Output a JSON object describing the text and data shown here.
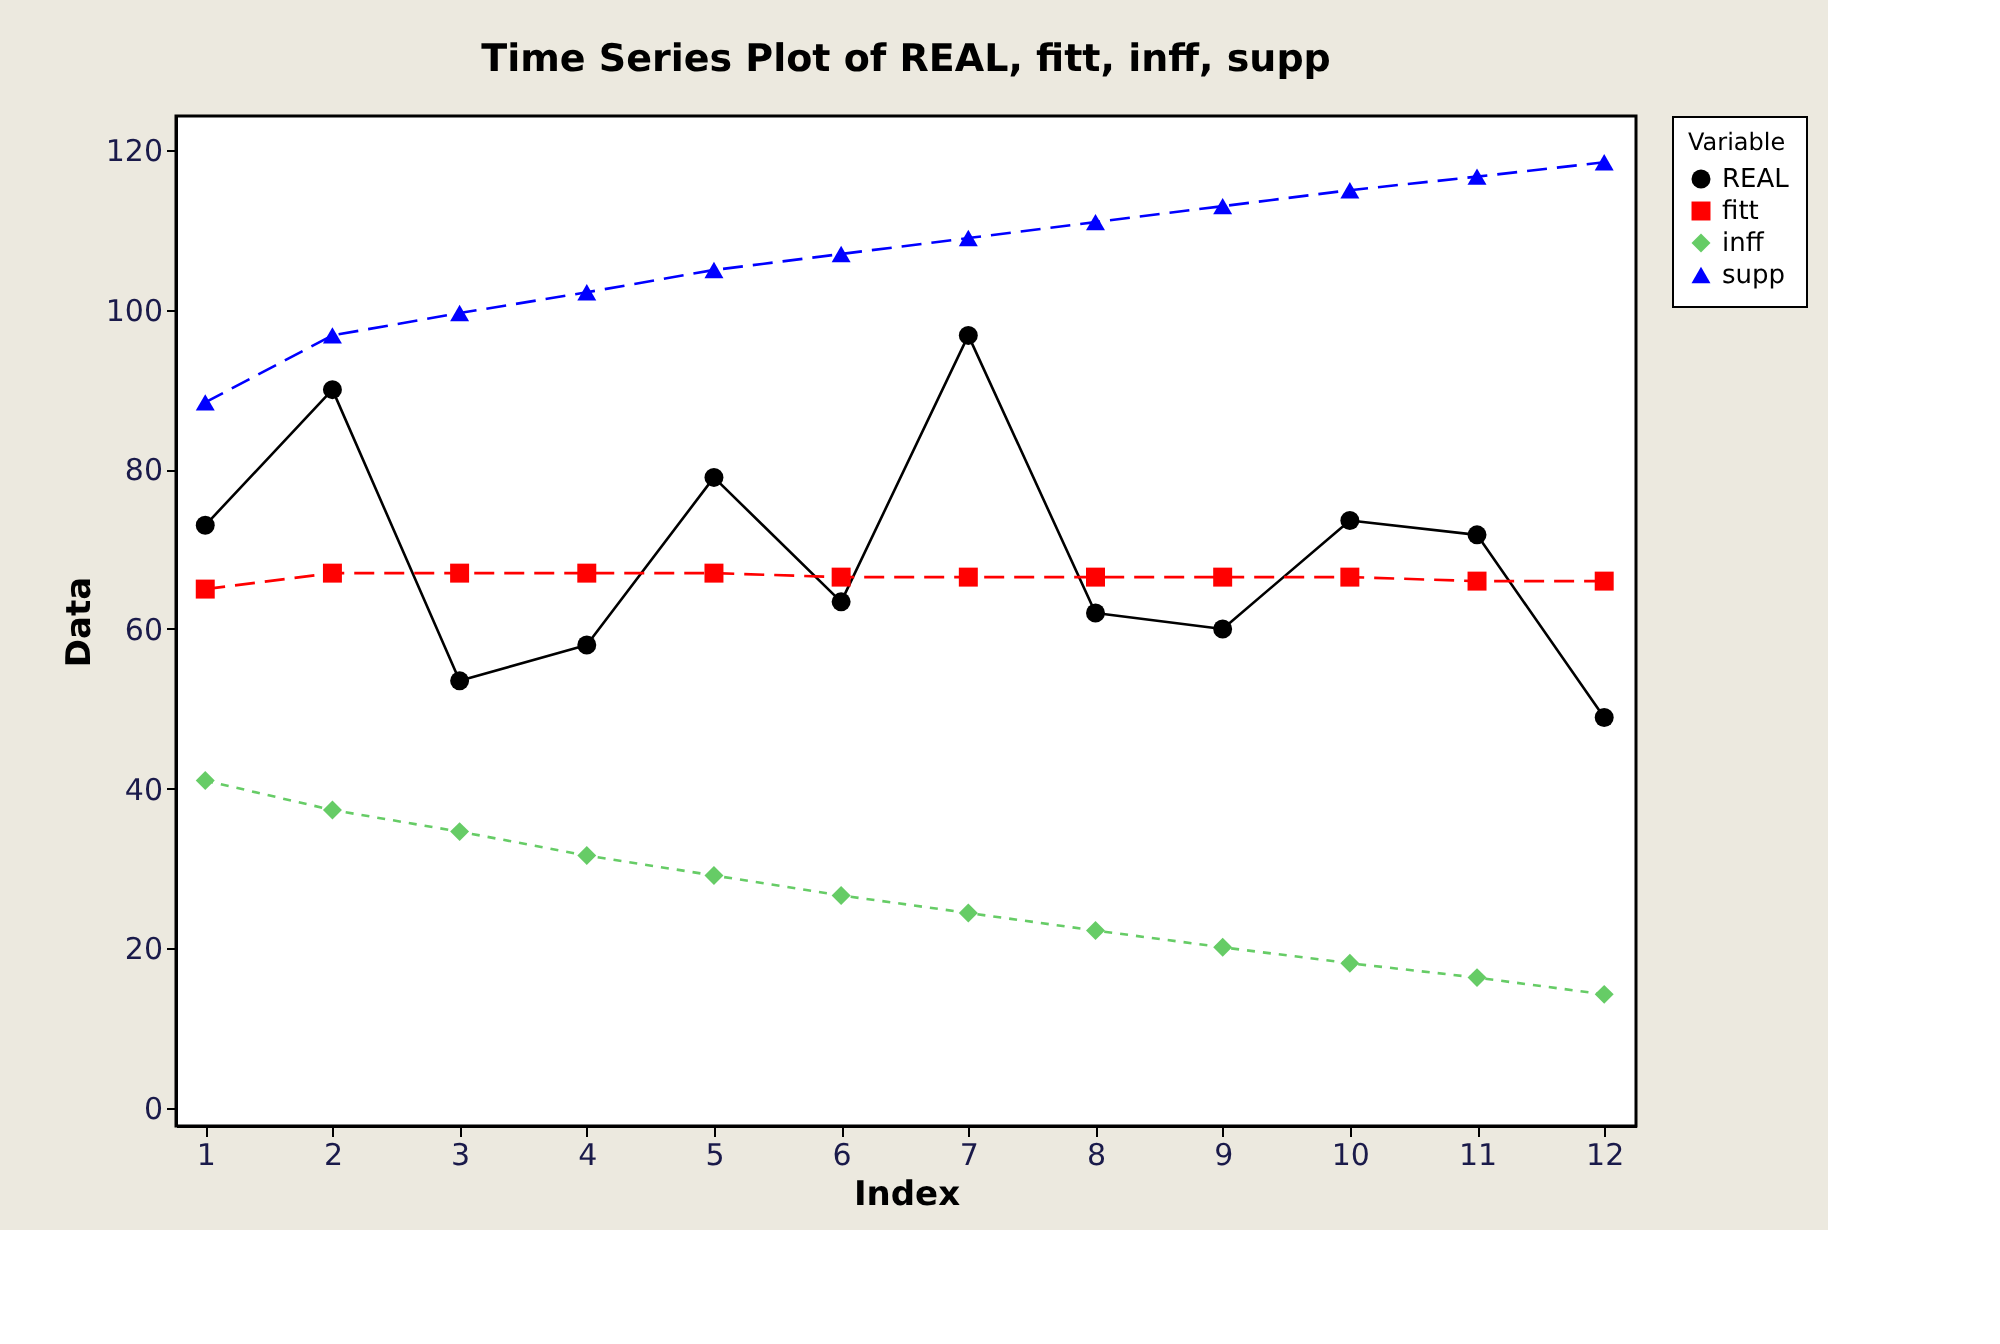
{
  "chart_data": {
    "type": "line",
    "title": "Time Series Plot of REAL, fitt, inff, supp",
    "xlabel": "Index",
    "ylabel": "Data",
    "legend_title": "Variable",
    "legend": "top right",
    "grid": false,
    "x": [
      1,
      2,
      3,
      4,
      5,
      6,
      7,
      8,
      9,
      10,
      11,
      12
    ],
    "xlim": [
      0.77,
      12.25
    ],
    "xticks": [
      1,
      2,
      3,
      4,
      5,
      6,
      7,
      8,
      9,
      10,
      11,
      12
    ],
    "ylim": [
      -2.3,
      124.3
    ],
    "yticks": [
      0,
      20,
      40,
      60,
      80,
      100,
      120
    ],
    "series": [
      {
        "name": "REAL",
        "color": "#000000",
        "marker": "circle",
        "line_style": "solid",
        "values": [
          73,
          90,
          53.5,
          58,
          79,
          63.4,
          96.8,
          62,
          60,
          73.6,
          71.8,
          48.9
        ]
      },
      {
        "name": "fitt",
        "color": "#ff0000",
        "marker": "square",
        "line_style": "dashed",
        "values": [
          65,
          67,
          67,
          67,
          67,
          66.5,
          66.5,
          66.5,
          66.5,
          66.5,
          66,
          66
        ]
      },
      {
        "name": "inff",
        "color": "#66cc66",
        "marker": "diamond",
        "line_style": "dotted",
        "values": [
          41,
          37.3,
          34.6,
          31.6,
          29.1,
          26.6,
          24.4,
          22.2,
          20.1,
          18.1,
          16.3,
          14.2
        ]
      },
      {
        "name": "supp",
        "color": "#0000ff",
        "marker": "triangle",
        "line_style": "dashed",
        "values": [
          88.4,
          96.8,
          99.6,
          102.2,
          105,
          107,
          109,
          111,
          113,
          115,
          116.7,
          118.5
        ]
      }
    ]
  }
}
